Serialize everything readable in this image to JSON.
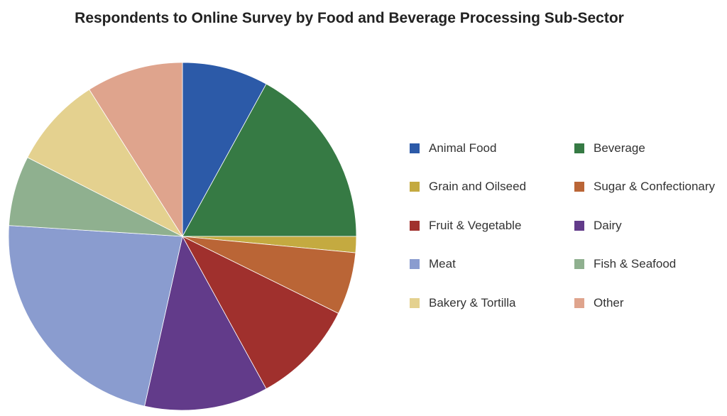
{
  "chart_data": {
    "type": "pie",
    "title": "Respondents to Online Survey by Food and Beverage Processing Sub-Sector",
    "unit": "%",
    "legend_position": "right",
    "slices": [
      {
        "label": "Animal Food",
        "value": 8.0,
        "color": "#2c5aa8"
      },
      {
        "label": "Beverage",
        "value": 17.0,
        "color": "#367a44"
      },
      {
        "label": "Grain and Oilseed",
        "value": 1.5,
        "color": "#c4aa40"
      },
      {
        "label": "Sugar & Confectionary",
        "value": 5.8,
        "color": "#ba6536"
      },
      {
        "label": "Fruit & Vegetable",
        "value": 9.7,
        "color": "#a0302d"
      },
      {
        "label": "Dairy",
        "value": 11.5,
        "color": "#623b8a"
      },
      {
        "label": "Meat",
        "value": 22.5,
        "color": "#8a9ccf"
      },
      {
        "label": "Fish & Seafood",
        "value": 6.5,
        "color": "#8fb08f"
      },
      {
        "label": "Bakery & Tortilla",
        "value": 8.5,
        "color": "#e4d18f"
      },
      {
        "label": "Other",
        "value": 9.0,
        "color": "#dfa48d"
      }
    ]
  }
}
